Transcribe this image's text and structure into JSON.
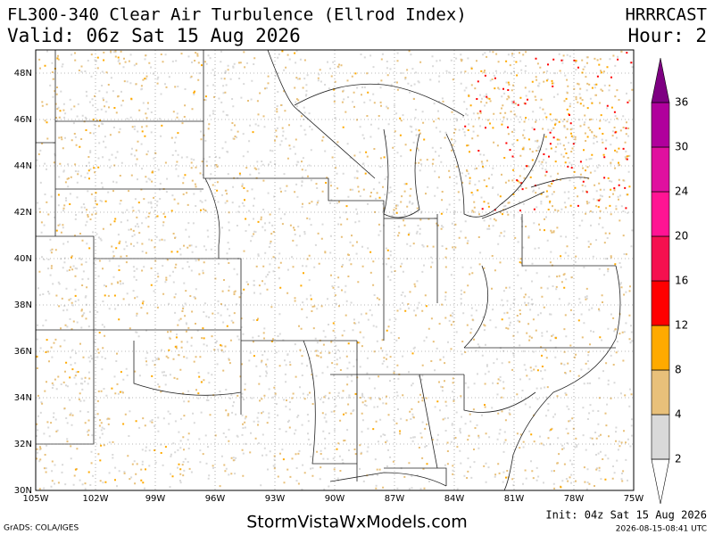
{
  "header": {
    "title": "FL300-340 Clear Air Turbulence (Ellrod Index)",
    "valid": "Valid: 06z Sat 15 Aug 2026",
    "model": "HRRRCAST",
    "hour": "Hour: 2"
  },
  "map": {
    "lat_labels": [
      "30N",
      "32N",
      "34N",
      "36N",
      "38N",
      "40N",
      "42N",
      "44N",
      "46N",
      "48N"
    ],
    "lon_labels": [
      "105W",
      "102W",
      "99W",
      "96W",
      "93W",
      "90W",
      "87W",
      "84W",
      "81W",
      "78W",
      "75W"
    ]
  },
  "colorbar": {
    "levels": [
      2,
      4,
      8,
      12,
      16,
      20,
      24,
      30,
      36
    ],
    "colors": [
      "#ffffff",
      "#d9d9d9",
      "#e8c07a",
      "#ffaa00",
      "#ff0000",
      "#f5104f",
      "#ff1493",
      "#e0109f",
      "#b0009c",
      "#7e0082"
    ]
  },
  "footer": {
    "grads": "GrADS: COLA/IGES",
    "site": "StormVistaWxModels.com",
    "init": "Init: 04z Sat 15 Aug 2026",
    "timestamp": "2026-08-15-08:41 UTC"
  }
}
